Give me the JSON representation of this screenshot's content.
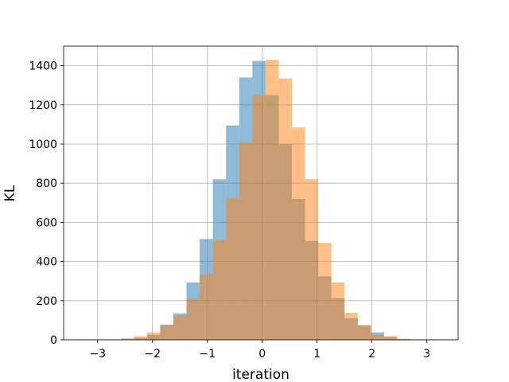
{
  "chart_data": {
    "type": "histogram",
    "title": "",
    "xlabel": "iteration",
    "ylabel": "KL",
    "xlim": [
      -3.62,
      3.57
    ],
    "ylim": [
      0,
      1500
    ],
    "xticks": [
      -3,
      -2,
      -1,
      0,
      1,
      2,
      3
    ],
    "yticks": [
      0,
      200,
      400,
      600,
      800,
      1000,
      1200,
      1400
    ],
    "grid": true,
    "legend": "none",
    "series": [
      {
        "color": "#1f77b4",
        "opacity": 0.5,
        "bins": [
          {
            "x0": -2.58,
            "x1": -2.34,
            "count": 3
          },
          {
            "x0": -2.34,
            "x1": -2.1,
            "count": 10
          },
          {
            "x0": -2.1,
            "x1": -1.86,
            "count": 25
          },
          {
            "x0": -1.86,
            "x1": -1.62,
            "count": 78
          },
          {
            "x0": -1.62,
            "x1": -1.38,
            "count": 135
          },
          {
            "x0": -1.38,
            "x1": -1.14,
            "count": 293
          },
          {
            "x0": -1.14,
            "x1": -0.9,
            "count": 515
          },
          {
            "x0": -0.9,
            "x1": -0.66,
            "count": 820
          },
          {
            "x0": -0.66,
            "x1": -0.42,
            "count": 1095
          },
          {
            "x0": -0.42,
            "x1": -0.18,
            "count": 1340
          },
          {
            "x0": -0.18,
            "x1": 0.06,
            "count": 1425
          },
          {
            "x0": 0.06,
            "x1": 0.3,
            "count": 1250
          },
          {
            "x0": 0.3,
            "x1": 0.54,
            "count": 1000
          },
          {
            "x0": 0.54,
            "x1": 0.78,
            "count": 720
          },
          {
            "x0": 0.78,
            "x1": 1.02,
            "count": 505
          },
          {
            "x0": 1.02,
            "x1": 1.26,
            "count": 325
          },
          {
            "x0": 1.26,
            "x1": 1.5,
            "count": 213
          },
          {
            "x0": 1.5,
            "x1": 1.74,
            "count": 110
          },
          {
            "x0": 1.74,
            "x1": 1.98,
            "count": 75
          },
          {
            "x0": 1.98,
            "x1": 2.22,
            "count": 38
          },
          {
            "x0": 2.22,
            "x1": 2.46,
            "count": 15
          },
          {
            "x0": 2.46,
            "x1": 2.7,
            "count": 5
          },
          {
            "x0": 2.7,
            "x1": 2.94,
            "count": 1
          },
          {
            "x0": 2.94,
            "x1": 3.18,
            "count": 2
          }
        ]
      },
      {
        "color": "#ff7f0e",
        "opacity": 0.5,
        "bins": [
          {
            "x0": -3.3,
            "x1": -3.06,
            "count": 2
          },
          {
            "x0": -3.06,
            "x1": -2.82,
            "count": 1
          },
          {
            "x0": -2.82,
            "x1": -2.58,
            "count": 1
          },
          {
            "x0": -2.58,
            "x1": -2.34,
            "count": 8
          },
          {
            "x0": -2.34,
            "x1": -2.1,
            "count": 18
          },
          {
            "x0": -2.1,
            "x1": -1.86,
            "count": 38
          },
          {
            "x0": -1.86,
            "x1": -1.62,
            "count": 75
          },
          {
            "x0": -1.62,
            "x1": -1.38,
            "count": 125
          },
          {
            "x0": -1.38,
            "x1": -1.14,
            "count": 210
          },
          {
            "x0": -1.14,
            "x1": -0.9,
            "count": 335
          },
          {
            "x0": -0.9,
            "x1": -0.66,
            "count": 510
          },
          {
            "x0": -0.66,
            "x1": -0.42,
            "count": 725
          },
          {
            "x0": -0.42,
            "x1": -0.18,
            "count": 1010
          },
          {
            "x0": -0.18,
            "x1": 0.06,
            "count": 1250
          },
          {
            "x0": 0.06,
            "x1": 0.3,
            "count": 1430
          },
          {
            "x0": 0.3,
            "x1": 0.54,
            "count": 1335
          },
          {
            "x0": 0.54,
            "x1": 0.78,
            "count": 1085
          },
          {
            "x0": 0.78,
            "x1": 1.02,
            "count": 820
          },
          {
            "x0": 1.02,
            "x1": 1.26,
            "count": 495
          },
          {
            "x0": 1.26,
            "x1": 1.5,
            "count": 293
          },
          {
            "x0": 1.5,
            "x1": 1.74,
            "count": 138
          },
          {
            "x0": 1.74,
            "x1": 1.98,
            "count": 75
          },
          {
            "x0": 1.98,
            "x1": 2.22,
            "count": 25
          },
          {
            "x0": 2.22,
            "x1": 2.46,
            "count": 18
          },
          {
            "x0": 2.46,
            "x1": 2.7,
            "count": 3
          }
        ]
      }
    ]
  }
}
